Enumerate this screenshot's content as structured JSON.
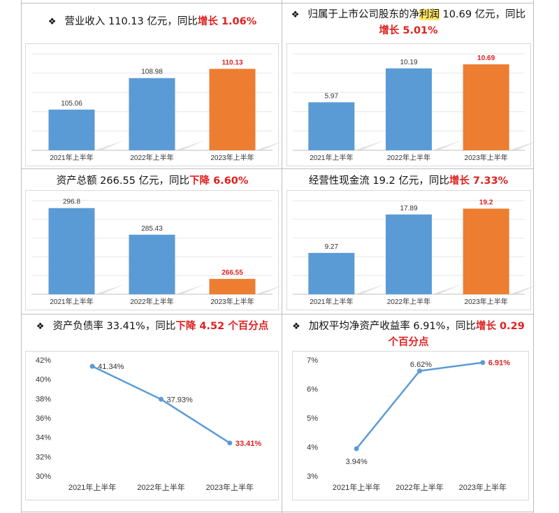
{
  "colors": {
    "blue": "#5b9bd5",
    "orange": "#ed7d31",
    "red": "#e02020",
    "line": "#5b9bd5"
  },
  "panels": [
    {
      "title_parts": [
        {
          "t": "营业收入 110.13 亿元，同比",
          "s": ""
        },
        {
          "t": "增长 1.06%",
          "s": "red"
        }
      ],
      "diamond": true
    },
    {
      "title_parts": [
        {
          "t": "归属于上市公司股东的净",
          "s": ""
        },
        {
          "t": "利润",
          "s": "hl"
        },
        {
          "t": " 10.69 亿元，同比",
          "s": ""
        },
        {
          "t": "增长 5.01%",
          "s": "red"
        }
      ],
      "diamond": true
    },
    {
      "title_parts": [
        {
          "t": "资产总额 266.55 亿元，同比",
          "s": ""
        },
        {
          "t": "下降 6.60%",
          "s": "red"
        }
      ],
      "diamond": false
    },
    {
      "title_parts": [
        {
          "t": "经营性现金流 19.2 亿元，同比",
          "s": ""
        },
        {
          "t": "增长 7.33%",
          "s": "red"
        }
      ],
      "diamond": false
    },
    {
      "title_parts": [
        {
          "t": "资产负债率 33.41%，同比",
          "s": ""
        },
        {
          "t": "下降 4.52 个百分点",
          "s": "red"
        }
      ],
      "diamond": true
    },
    {
      "title_parts": [
        {
          "t": "加权平均净资产收益率 6.91%，同比",
          "s": ""
        },
        {
          "t": "增长 0.29 个百分点",
          "s": "red"
        }
      ],
      "diamond": true
    }
  ],
  "chart_data": [
    {
      "type": "bar",
      "categories": [
        "2021年上半年",
        "2022年上半年",
        "2023年上半年"
      ],
      "values": [
        105.06,
        108.98,
        110.13
      ],
      "labels": [
        "105.06",
        "108.98",
        "110.13"
      ],
      "ylim": [
        100,
        112
      ],
      "highlight_last": true
    },
    {
      "type": "bar",
      "categories": [
        "2021年上半年",
        "2022年上半年",
        "2023年上半年"
      ],
      "values": [
        5.97,
        10.19,
        10.69
      ],
      "labels": [
        "5.97",
        "10.19",
        "10.69"
      ],
      "ylim": [
        0,
        12
      ],
      "highlight_last": true
    },
    {
      "type": "bar",
      "categories": [
        "2021年上半年",
        "2022年上半年",
        "2023年上半年"
      ],
      "values": [
        296.8,
        285.43,
        266.55
      ],
      "labels": [
        "296.8",
        "285.43",
        "266.55"
      ],
      "ylim": [
        260,
        300
      ],
      "highlight_last": true
    },
    {
      "type": "bar",
      "categories": [
        "2021年上半年",
        "2022年上半年",
        "2023年上半年"
      ],
      "values": [
        9.27,
        17.89,
        19.2
      ],
      "labels": [
        "9.27",
        "17.89",
        "19.2"
      ],
      "ylim": [
        0,
        21
      ],
      "highlight_last": true
    },
    {
      "type": "line",
      "categories": [
        "2021年上半年",
        "2022年上半年",
        "2023年上半年"
      ],
      "values": [
        41.34,
        37.93,
        33.41
      ],
      "labels": [
        "41.34%",
        "37.93%",
        "33.41%"
      ],
      "ylim": [
        30,
        42
      ],
      "yticks": [
        "30%",
        "32%",
        "34%",
        "36%",
        "38%",
        "40%",
        "42%"
      ]
    },
    {
      "type": "line",
      "categories": [
        "2021年上半年",
        "2022年上半年",
        "2023年上半年"
      ],
      "values": [
        3.94,
        6.62,
        6.91
      ],
      "labels": [
        "3.94%",
        "6.62%",
        "6.91%"
      ],
      "ylim": [
        3,
        7
      ],
      "yticks": [
        "3%",
        "4%",
        "5%",
        "6%",
        "7%"
      ]
    }
  ]
}
